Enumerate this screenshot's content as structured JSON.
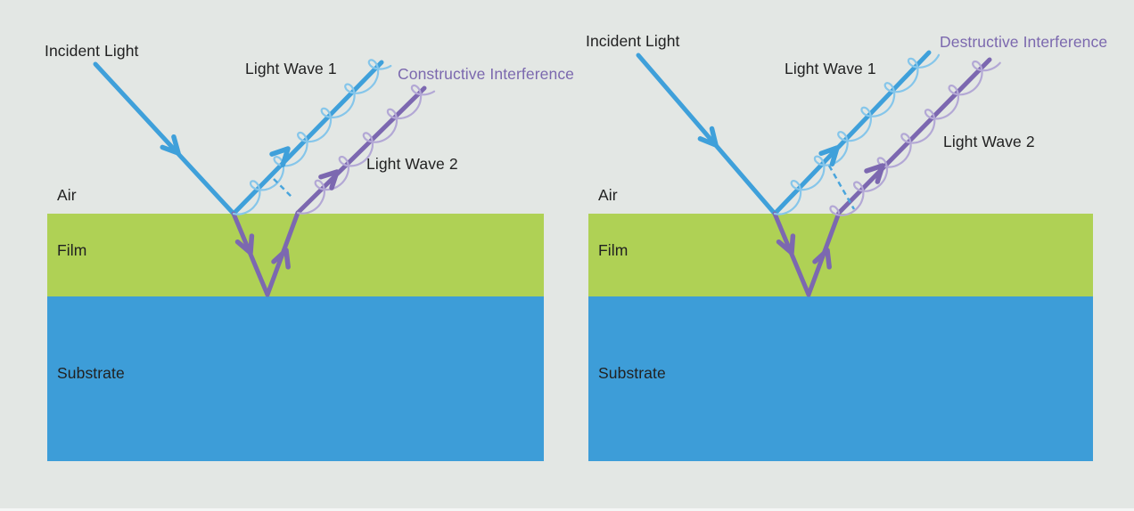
{
  "colors": {
    "background": "#E3E7E4",
    "film": "#AFD155",
    "substrate": "#3D9DD8",
    "ray_blue": "#3FA0DA",
    "wave_blue": "#86C6EA",
    "ray_purple": "#7C68B0",
    "wave_purple": "#B3A8D5",
    "dash_blue": "#4AA5DC",
    "label_black": "#212121",
    "label_purple": "#7B68AE"
  },
  "panels": [
    {
      "id": "left",
      "interference_type": "constructive",
      "labels": {
        "incident_light": "Incident Light",
        "light_wave_1": "Light Wave 1",
        "light_wave_2": "Light Wave 2",
        "result": "Constructive Interference",
        "air": "Air",
        "film": "Film",
        "substrate": "Substrate"
      }
    },
    {
      "id": "right",
      "interference_type": "destructive",
      "labels": {
        "incident_light": "Incident Light",
        "light_wave_1": "Light Wave 1",
        "light_wave_2": "Light Wave 2",
        "result": "Destructive Interference",
        "air": "Air",
        "film": "Film",
        "substrate": "Substrate"
      }
    }
  ]
}
